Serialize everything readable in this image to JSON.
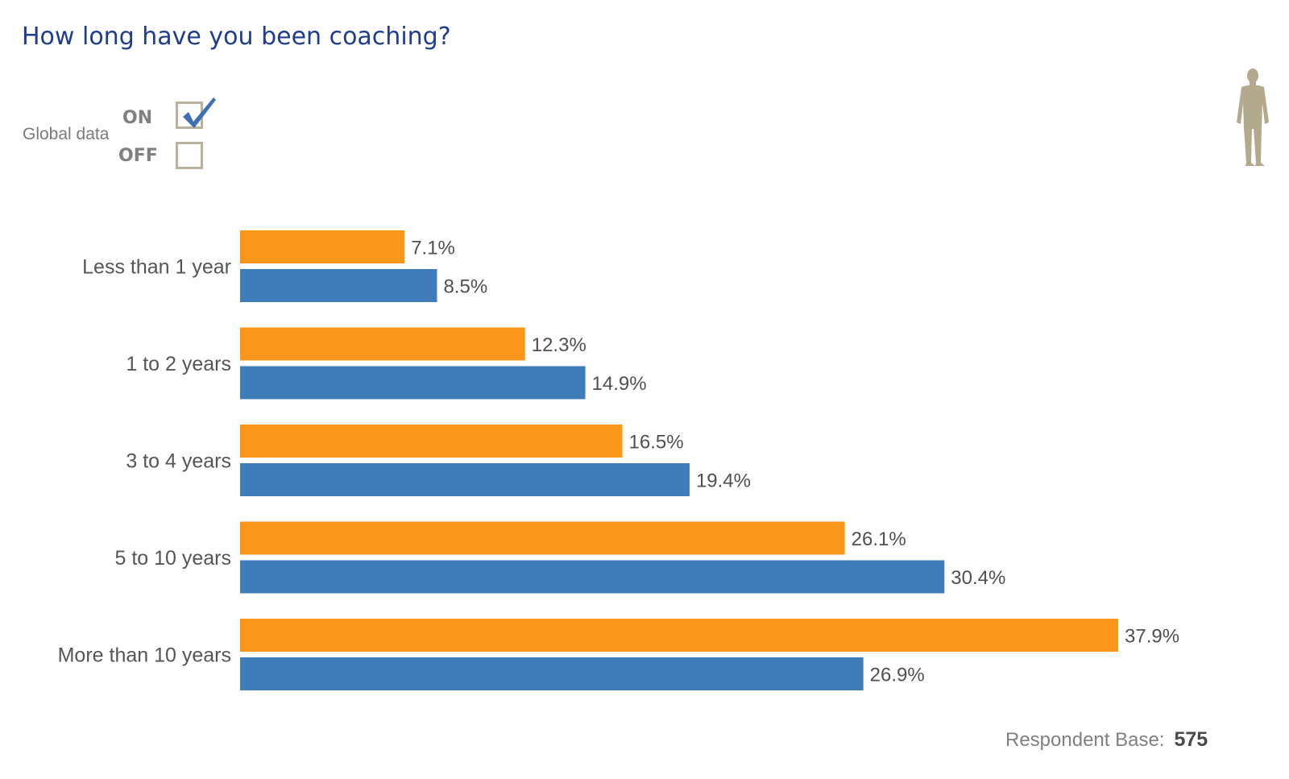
{
  "title": "How long have you been coaching?",
  "toggle": {
    "label": "Global data",
    "on_label": "ON",
    "off_label": "OFF",
    "selected": "ON"
  },
  "icons": {
    "check": "checkmark-icon",
    "person": "person-silhouette-icon"
  },
  "colors": {
    "series_orange": "#fa961a",
    "series_blue": "#3f7cba",
    "title": "#1f3d8f",
    "checkbox_border": "#b9b19c",
    "check": "#3f6fb4"
  },
  "chart_data": {
    "type": "bar",
    "orientation": "horizontal",
    "categories": [
      "Less than 1 year",
      "1 to 2 years",
      "3 to 4 years",
      "5 to 10 years",
      "More than 10 years"
    ],
    "series": [
      {
        "values": [
          7.1,
          12.3,
          16.5,
          26.1,
          37.9
        ],
        "labels": [
          "7.1%",
          "12.3%",
          "16.5%",
          "26.1%",
          "37.9%"
        ],
        "color": "#fa961a"
      },
      {
        "values": [
          8.5,
          14.9,
          19.4,
          30.4,
          26.9
        ],
        "labels": [
          "8.5%",
          "14.9%",
          "19.4%",
          "30.4%",
          "26.9%"
        ],
        "color": "#3f7cba"
      }
    ],
    "xlim": [
      0,
      37.9
    ],
    "grid": false,
    "legend": "none"
  },
  "footer": {
    "label": "Respondent Base:",
    "value": "575"
  }
}
